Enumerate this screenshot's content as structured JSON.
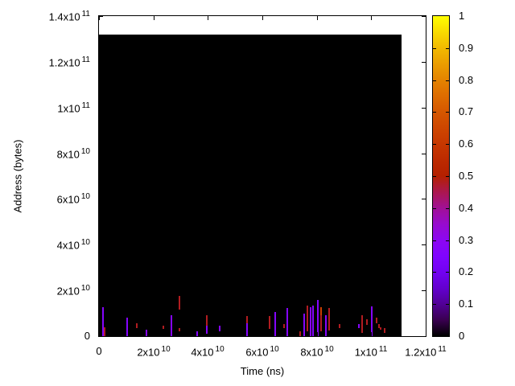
{
  "figure": {
    "background_color": "#ffffff",
    "border_color": "#000000"
  },
  "chart_data": {
    "type": "heatmap",
    "title": "",
    "xlabel": "Time (ns)",
    "ylabel": "Address (bytes)",
    "xlim": [
      0,
      120000000000
    ],
    "ylim": [
      0,
      140000000000
    ],
    "grid": false,
    "legend": "colorbar-right",
    "xticks": [
      {
        "value": 0,
        "mantissa": "0",
        "exp": ""
      },
      {
        "value": 20000000000,
        "mantissa": "2x10",
        "exp": "10"
      },
      {
        "value": 40000000000,
        "mantissa": "4x10",
        "exp": "10"
      },
      {
        "value": 60000000000,
        "mantissa": "6x10",
        "exp": "10"
      },
      {
        "value": 80000000000,
        "mantissa": "8x10",
        "exp": "10"
      },
      {
        "value": 100000000000,
        "mantissa": "1x10",
        "exp": "11"
      },
      {
        "value": 120000000000,
        "mantissa": "1.2x10",
        "exp": "11"
      }
    ],
    "yticks": [
      {
        "value": 0,
        "mantissa": "0",
        "exp": ""
      },
      {
        "value": 20000000000,
        "mantissa": "2x10",
        "exp": "10"
      },
      {
        "value": 40000000000,
        "mantissa": "4x10",
        "exp": "10"
      },
      {
        "value": 60000000000,
        "mantissa": "6x10",
        "exp": "10"
      },
      {
        "value": 80000000000,
        "mantissa": "8x10",
        "exp": "10"
      },
      {
        "value": 100000000000,
        "mantissa": "1x10",
        "exp": "11"
      },
      {
        "value": 120000000000,
        "mantissa": "1.2x10",
        "exp": "11"
      },
      {
        "value": 140000000000,
        "mantissa": "1.4x10",
        "exp": "11"
      }
    ],
    "colorbar": {
      "min": 0,
      "max": 1,
      "ticks": [
        {
          "value": 1.0,
          "label": "1"
        },
        {
          "value": 0.9,
          "label": "0.9"
        },
        {
          "value": 0.8,
          "label": "0.8"
        },
        {
          "value": 0.7,
          "label": "0.7"
        },
        {
          "value": 0.6,
          "label": "0.6"
        },
        {
          "value": 0.5,
          "label": "0.5"
        },
        {
          "value": 0.4,
          "label": "0.4"
        },
        {
          "value": 0.3,
          "label": "0.3"
        },
        {
          "value": 0.2,
          "label": "0.2"
        },
        {
          "value": 0.1,
          "label": "0.1"
        },
        {
          "value": 0.0,
          "label": "0"
        }
      ]
    },
    "palette": {
      "name": "gnuplot-rgbformulae-7-5-15",
      "stops": [
        {
          "pos": 0.0,
          "color": "#000000"
        },
        {
          "pos": 0.05,
          "color": "#39004f"
        },
        {
          "pos": 0.1,
          "color": "#510096"
        },
        {
          "pos": 0.15,
          "color": "#6300ce"
        },
        {
          "pos": 0.2,
          "color": "#7202f2"
        },
        {
          "pos": 0.25,
          "color": "#8004ff"
        },
        {
          "pos": 0.3,
          "color": "#8c07f2"
        },
        {
          "pos": 0.35,
          "color": "#970bce"
        },
        {
          "pos": 0.4,
          "color": "#a11096"
        },
        {
          "pos": 0.45,
          "color": "#ab174f"
        },
        {
          "pos": 0.5,
          "color": "#b42000"
        },
        {
          "pos": 0.55,
          "color": "#bd2a00"
        },
        {
          "pos": 0.6,
          "color": "#c63700"
        },
        {
          "pos": 0.65,
          "color": "#ce4600"
        },
        {
          "pos": 0.7,
          "color": "#d55700"
        },
        {
          "pos": 0.75,
          "color": "#dd6c00"
        },
        {
          "pos": 0.8,
          "color": "#e48300"
        },
        {
          "pos": 0.85,
          "color": "#eb9d00"
        },
        {
          "pos": 0.9,
          "color": "#f2ba00"
        },
        {
          "pos": 0.95,
          "color": "#f9db00"
        },
        {
          "pos": 1.0,
          "color": "#ffff00"
        }
      ]
    },
    "heatmap_extent": {
      "t_min": 0,
      "t_max": 111000000000,
      "a_min": 0,
      "a_max": 132000000000,
      "base_value": 0,
      "base_color": "#000000"
    },
    "spikes": [
      {
        "t": 1500000000.0,
        "a0": 0,
        "a1": 12700000000.0,
        "v": 0.27
      },
      {
        "t": 2100000000.0,
        "a0": 0,
        "a1": 3900000000.0,
        "v": 0.48
      },
      {
        "t": 10300000000.0,
        "a0": 0,
        "a1": 8100000000.0,
        "v": 0.27
      },
      {
        "t": 13900000000.0,
        "a0": 3500000000.0,
        "a1": 5600000000.0,
        "v": 0.48
      },
      {
        "t": 17400000000.0,
        "a0": 0,
        "a1": 2800000000.0,
        "v": 0.27
      },
      {
        "t": 23600000000.0,
        "a0": 3200000000.0,
        "a1": 4600000000.0,
        "v": 0.48
      },
      {
        "t": 26600000000.0,
        "a0": 0,
        "a1": 9100000000.0,
        "v": 0.27
      },
      {
        "t": 29600000000.0,
        "a0": 11600000000.0,
        "a1": 17600000000.0,
        "v": 0.48
      },
      {
        "t": 29600000000.0,
        "a0": 2100000000.0,
        "a1": 3500000000.0,
        "v": 0.48
      },
      {
        "t": 36000000000.0,
        "a0": 0,
        "a1": 2100000000.0,
        "v": 0.27
      },
      {
        "t": 39600000000.0,
        "a0": 4600000000.0,
        "a1": 9100000000.0,
        "v": 0.48
      },
      {
        "t": 39600000000.0,
        "a0": 1000000000.0,
        "a1": 4600000000.0,
        "v": 0.27
      },
      {
        "t": 44300000000.0,
        "a0": 2100000000.0,
        "a1": 4600000000.0,
        "v": 0.27
      },
      {
        "t": 54400000000.0,
        "a0": 5600000000.0,
        "a1": 8800000000.0,
        "v": 0.48
      },
      {
        "t": 54400000000.0,
        "a0": 0,
        "a1": 5600000000.0,
        "v": 0.27
      },
      {
        "t": 62700000000.0,
        "a0": 3000000000.0,
        "a1": 8800000000.0,
        "v": 0.48
      },
      {
        "t": 64700000000.0,
        "a0": 0,
        "a1": 10600000000.0,
        "v": 0.27
      },
      {
        "t": 68000000000.0,
        "a0": 3500000000.0,
        "a1": 5300000000.0,
        "v": 0.48
      },
      {
        "t": 69200000000.0,
        "a0": 0,
        "a1": 12300000000.0,
        "v": 0.27
      },
      {
        "t": 73900000000.0,
        "a0": 0,
        "a1": 2100000000.0,
        "v": 0.48
      },
      {
        "t": 75400000000.0,
        "a0": 0,
        "a1": 9800000000.0,
        "v": 0.27
      },
      {
        "t": 76600000000.0,
        "a0": 2000000000.0,
        "a1": 13400000000.0,
        "v": 0.48
      },
      {
        "t": 77700000000.0,
        "a0": 0,
        "a1": 12700000000.0,
        "v": 0.27
      },
      {
        "t": 78600000000.0,
        "a0": 0,
        "a1": 13400000000.0,
        "v": 0.27
      },
      {
        "t": 80400000000.0,
        "a0": 0,
        "a1": 15800000000.0,
        "v": 0.27
      },
      {
        "t": 81600000000.0,
        "a0": 9000000000.0,
        "a1": 12700000000.0,
        "v": 0.62
      },
      {
        "t": 81600000000.0,
        "a0": 2000000000.0,
        "a1": 9000000000.0,
        "v": 0.48
      },
      {
        "t": 83400000000.0,
        "a0": 0,
        "a1": 9100000000.0,
        "v": 0.27
      },
      {
        "t": 84500000000.0,
        "a0": 2500000000.0,
        "a1": 12300000000.0,
        "v": 0.48
      },
      {
        "t": 88400000000.0,
        "a0": 3500000000.0,
        "a1": 5300000000.0,
        "v": 0.48
      },
      {
        "t": 95500000000.0,
        "a0": 3500000000.0,
        "a1": 5300000000.0,
        "v": 0.27
      },
      {
        "t": 96700000000.0,
        "a0": 1500000000.0,
        "a1": 9100000000.0,
        "v": 0.48
      },
      {
        "t": 98400000000.0,
        "a0": 5000000000.0,
        "a1": 7400000000.0,
        "v": 0.48
      },
      {
        "t": 100200000000.0,
        "a0": 0,
        "a1": 13000000000.0,
        "v": 0.27
      },
      {
        "t": 102000000000.0,
        "a0": 5500000000.0,
        "a1": 8100000000.0,
        "v": 0.48
      },
      {
        "t": 102900000000.0,
        "a0": 3500000000.0,
        "a1": 5300000000.0,
        "v": 0.48
      },
      {
        "t": 103500000000.0,
        "a0": 2800000000.0,
        "a1": 3900000000.0,
        "v": 0.48
      },
      {
        "t": 105000000000.0,
        "a0": 1500000000.0,
        "a1": 3500000000.0,
        "v": 0.48
      }
    ]
  }
}
